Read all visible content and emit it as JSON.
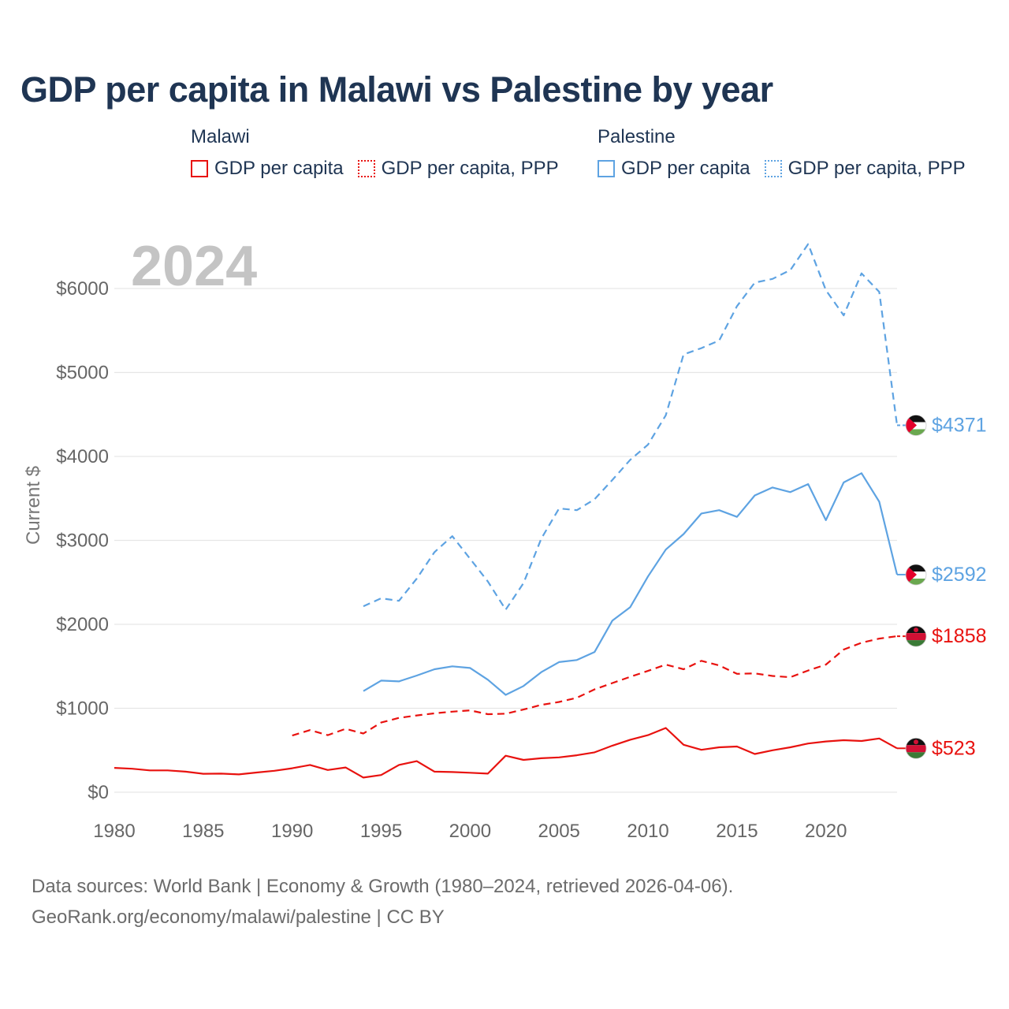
{
  "title": "GDP per capita in Malawi vs Palestine by year",
  "legend": {
    "malawi": {
      "name": "Malawi",
      "items": [
        "GDP per capita",
        "GDP per capita, PPP"
      ],
      "color": "#e8120f"
    },
    "palestine": {
      "name": "Palestine",
      "items": [
        "GDP per capita",
        "GDP per capita, PPP"
      ],
      "color": "#5ea3e2"
    }
  },
  "footer": {
    "line1": "Data sources: World Bank | Economy & Growth (1980–2024, retrieved 2026-04-06).",
    "line2": "GeoRank.org/economy/malawi/palestine | CC BY"
  },
  "chart_data": {
    "type": "line",
    "year_label": "2024",
    "ylabel": "Current $",
    "xlim": [
      1980,
      2024
    ],
    "ylim": [
      0,
      6500
    ],
    "x_ticks": [
      1980,
      1985,
      1990,
      1995,
      2000,
      2005,
      2010,
      2015,
      2020
    ],
    "y_ticks": [
      {
        "value": 0,
        "label": "$0"
      },
      {
        "value": 1000,
        "label": "$1000"
      },
      {
        "value": 2000,
        "label": "$2000"
      },
      {
        "value": 3000,
        "label": "$3000"
      },
      {
        "value": 4000,
        "label": "$4000"
      },
      {
        "value": 5000,
        "label": "$5000"
      },
      {
        "value": 6000,
        "label": "$6000"
      }
    ],
    "series": [
      {
        "name": "Malawi GDP per capita",
        "country": "Malawi",
        "style": "solid",
        "color": "#e8120f",
        "end_label": "$523",
        "start_year": 1980,
        "values": [
          290,
          280,
          260,
          260,
          245,
          220,
          222,
          212,
          235,
          255,
          285,
          325,
          265,
          295,
          175,
          205,
          325,
          370,
          245,
          240,
          232,
          222,
          435,
          385,
          405,
          415,
          440,
          475,
          555,
          625,
          680,
          765,
          565,
          505,
          535,
          545,
          455,
          500,
          535,
          580,
          605,
          620,
          610,
          640,
          523
        ]
      },
      {
        "name": "Malawi GDP per capita, PPP",
        "country": "Malawi",
        "style": "dashed",
        "color": "#e8120f",
        "end_label": "$1858",
        "start_year": 1990,
        "values": [
          675,
          740,
          680,
          755,
          700,
          830,
          885,
          915,
          940,
          960,
          975,
          930,
          935,
          985,
          1040,
          1075,
          1125,
          1225,
          1300,
          1375,
          1445,
          1520,
          1465,
          1565,
          1510,
          1410,
          1415,
          1385,
          1370,
          1450,
          1520,
          1700,
          1780,
          1830,
          1858
        ]
      },
      {
        "name": "Palestine GDP per capita",
        "country": "Palestine",
        "style": "solid",
        "color": "#5ea3e2",
        "end_label": "$2592",
        "start_year": 1994,
        "values": [
          1205,
          1330,
          1320,
          1390,
          1465,
          1500,
          1480,
          1340,
          1160,
          1265,
          1430,
          1550,
          1575,
          1670,
          2045,
          2205,
          2570,
          2890,
          3075,
          3320,
          3360,
          3280,
          3535,
          3630,
          3575,
          3670,
          3240,
          3690,
          3800,
          3460,
          2592
        ]
      },
      {
        "name": "Palestine GDP per capita, PPP",
        "country": "Palestine",
        "style": "dashed",
        "color": "#5ea3e2",
        "end_label": "$4371",
        "start_year": 1994,
        "values": [
          2215,
          2310,
          2280,
          2545,
          2860,
          3050,
          2780,
          2510,
          2175,
          2490,
          3020,
          3380,
          3360,
          3490,
          3720,
          3960,
          4140,
          4490,
          5215,
          5290,
          5380,
          5790,
          6070,
          6115,
          6220,
          6530,
          5980,
          5680,
          6180,
          5960,
          4371
        ]
      }
    ]
  }
}
